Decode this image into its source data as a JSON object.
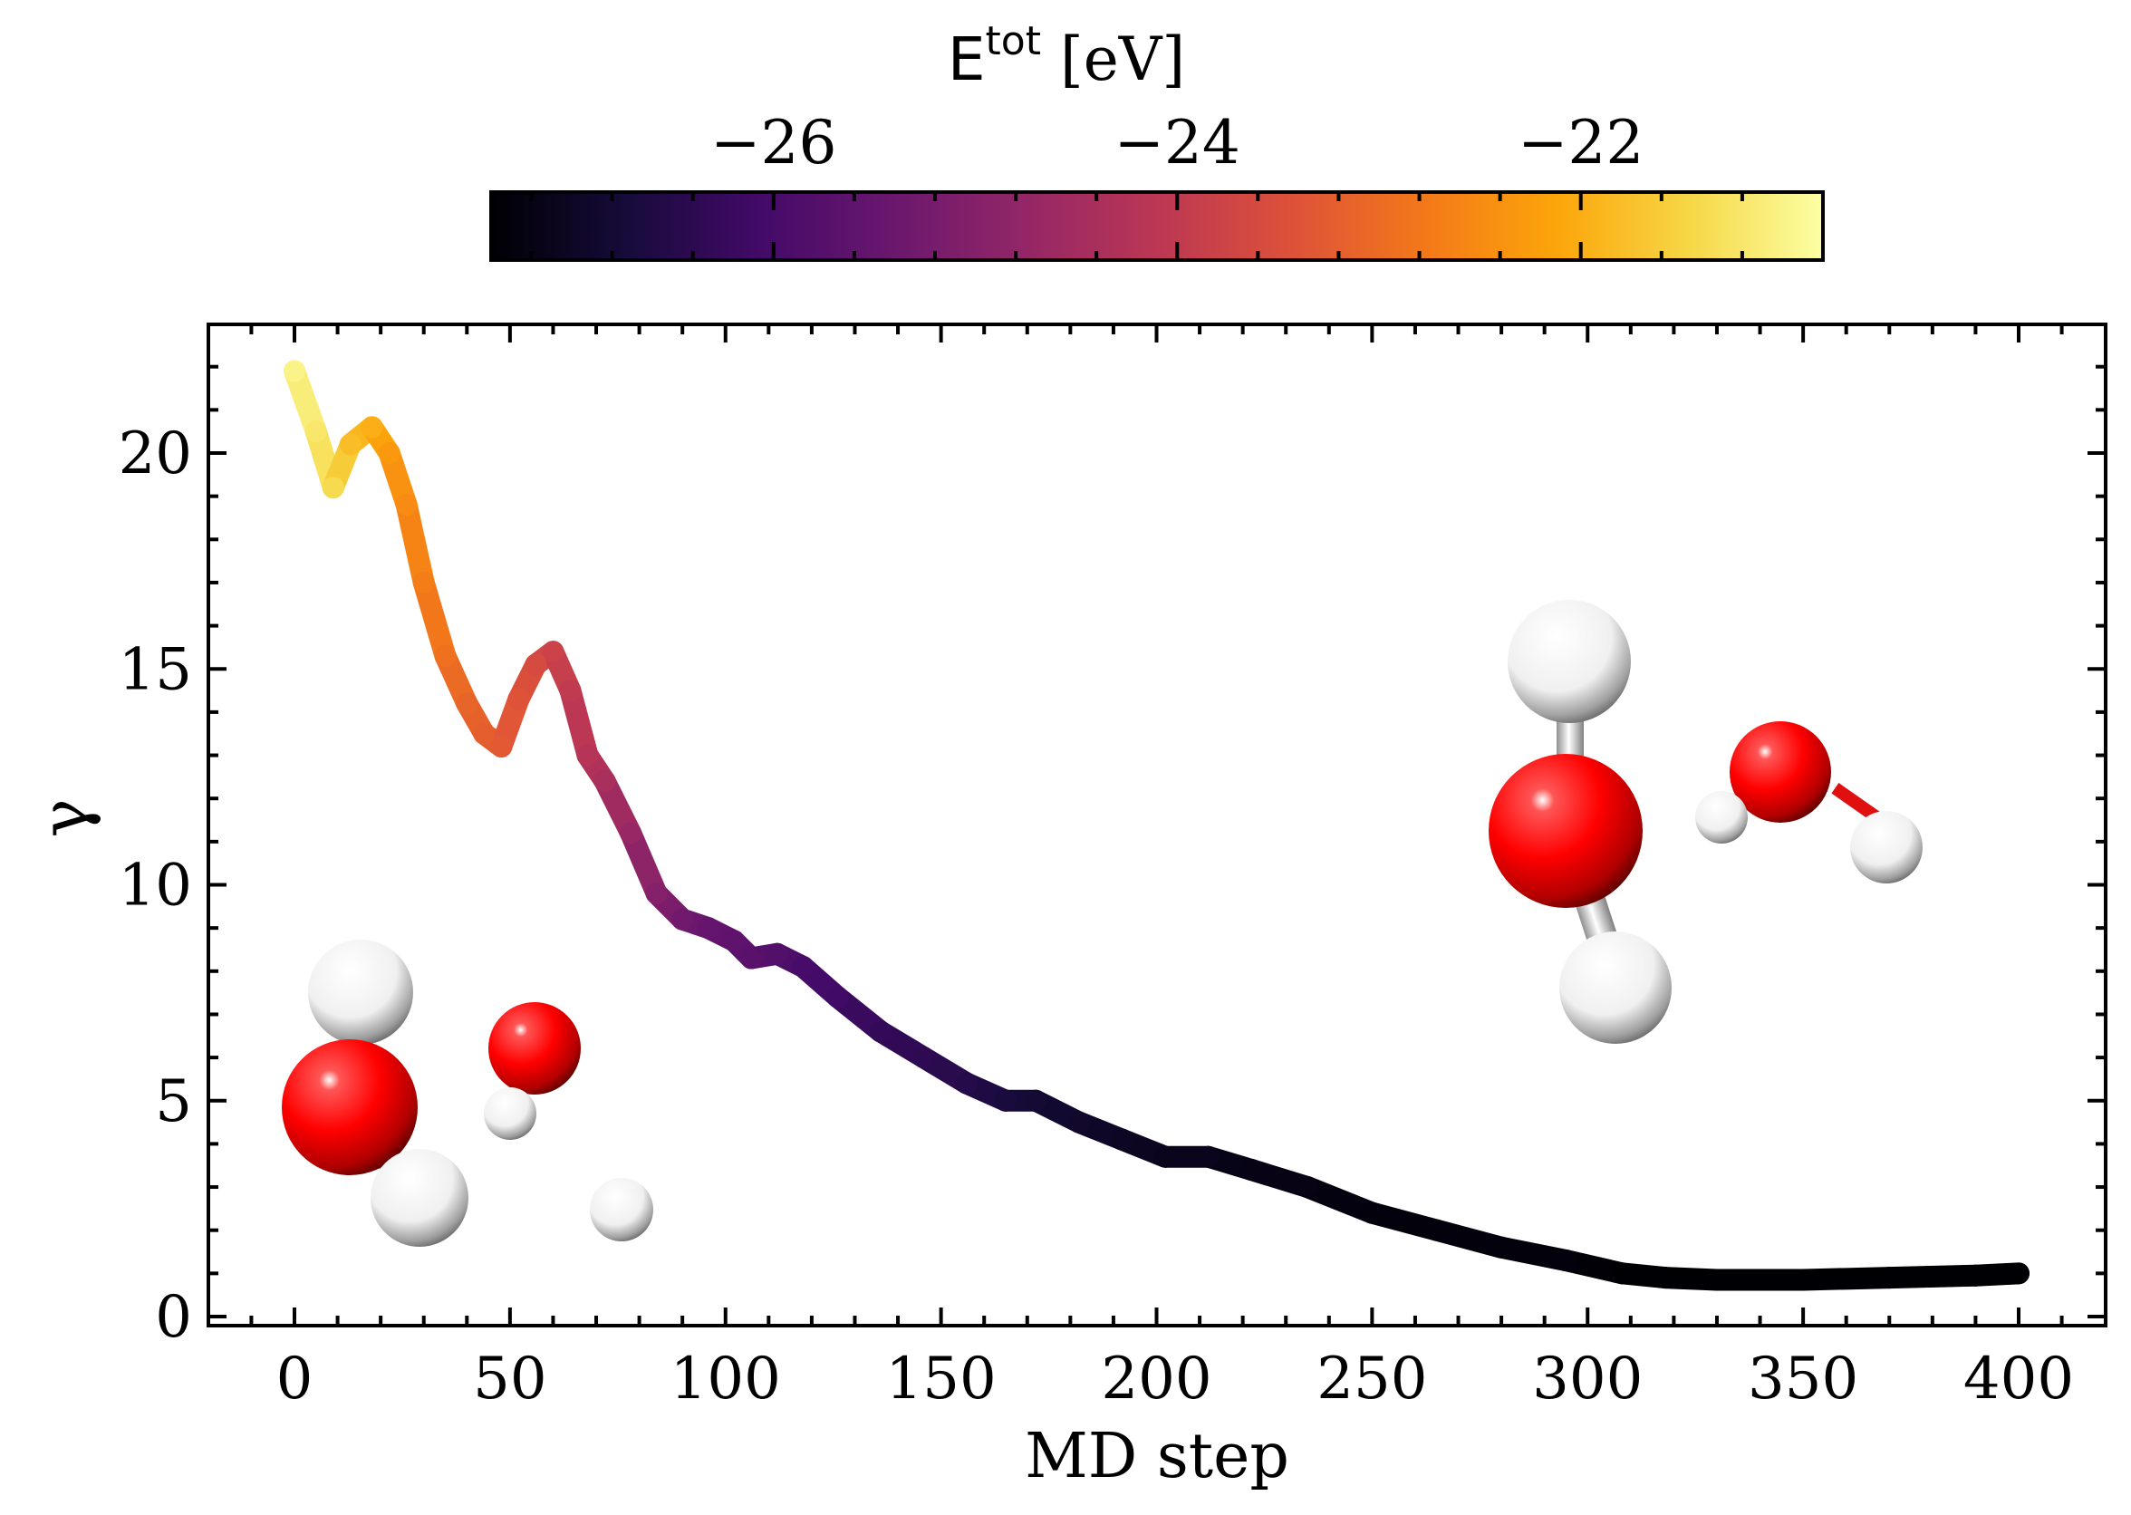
{
  "chart_data": {
    "type": "line",
    "title": "",
    "xlabel": "MD step",
    "ylabel": "γ",
    "xlim": [
      -20,
      420
    ],
    "ylim": [
      -0.3,
      23
    ],
    "xticks": [
      0,
      50,
      100,
      150,
      200,
      250,
      300,
      350,
      400
    ],
    "xtick_labels": [
      "0",
      "50",
      "100",
      "150",
      "200",
      "250",
      "300",
      "350",
      "400"
    ],
    "yticks": [
      0,
      5,
      10,
      15,
      20
    ],
    "ytick_labels": [
      "0",
      "5",
      "10",
      "15",
      "20"
    ],
    "grid": false,
    "colorbar": {
      "label_main": "E",
      "label_sup": "tot",
      "label_unit": " [eV]",
      "range": [
        -27.4,
        -20.8
      ],
      "ticks": [
        -26,
        -24,
        -22
      ],
      "tick_labels": [
        "−26",
        "−24",
        "−22"
      ],
      "colormap": "inferno",
      "orientation": "horizontal",
      "placement": "top"
    },
    "series": [
      {
        "name": "trajectory",
        "color_by": "E_tot",
        "points": [
          [
            0,
            21.9,
            -21.0
          ],
          [
            5,
            20.5,
            -21.2
          ],
          [
            9,
            19.2,
            -21.4
          ],
          [
            13,
            20.2,
            -21.8
          ],
          [
            18,
            20.6,
            -22.0
          ],
          [
            22,
            20.0,
            -22.3
          ],
          [
            26,
            18.8,
            -22.5
          ],
          [
            30,
            17.0,
            -22.7
          ],
          [
            35,
            15.3,
            -22.9
          ],
          [
            40,
            14.2,
            -23.1
          ],
          [
            44,
            13.5,
            -23.2
          ],
          [
            48,
            13.2,
            -23.3
          ],
          [
            52,
            14.3,
            -23.4
          ],
          [
            56,
            15.1,
            -23.6
          ],
          [
            60,
            15.4,
            -23.8
          ],
          [
            64,
            14.5,
            -24.0
          ],
          [
            68,
            13.0,
            -24.2
          ],
          [
            72,
            12.4,
            -24.4
          ],
          [
            78,
            11.2,
            -24.7
          ],
          [
            84,
            9.8,
            -25.0
          ],
          [
            90,
            9.2,
            -25.3
          ],
          [
            96,
            9.0,
            -25.5
          ],
          [
            102,
            8.7,
            -25.6
          ],
          [
            106,
            8.3,
            -25.7
          ],
          [
            112,
            8.4,
            -25.8
          ],
          [
            118,
            8.1,
            -26.0
          ],
          [
            126,
            7.4,
            -26.1
          ],
          [
            136,
            6.6,
            -26.3
          ],
          [
            146,
            6.0,
            -26.4
          ],
          [
            156,
            5.4,
            -26.5
          ],
          [
            165,
            5.0,
            -26.7
          ],
          [
            172,
            5.0,
            -26.8
          ],
          [
            182,
            4.5,
            -26.9
          ],
          [
            192,
            4.1,
            -27.0
          ],
          [
            202,
            3.7,
            -27.1
          ],
          [
            212,
            3.7,
            -27.1
          ],
          [
            222,
            3.4,
            -27.2
          ],
          [
            235,
            3.0,
            -27.2
          ],
          [
            250,
            2.4,
            -27.3
          ],
          [
            265,
            2.0,
            -27.3
          ],
          [
            280,
            1.6,
            -27.3
          ],
          [
            295,
            1.3,
            -27.3
          ],
          [
            308,
            1.0,
            -27.4
          ],
          [
            318,
            0.9,
            -27.4
          ],
          [
            330,
            0.85,
            -27.4
          ],
          [
            350,
            0.85,
            -27.4
          ],
          [
            370,
            0.9,
            -27.4
          ],
          [
            390,
            0.95,
            -27.4
          ],
          [
            400,
            1.0,
            -27.4
          ]
        ]
      }
    ],
    "annotations": [
      {
        "type": "molecule-image",
        "description": "water dimer near initial configuration",
        "position": "bottom-left"
      },
      {
        "type": "molecule-image",
        "description": "water dimer relaxed configuration",
        "position": "center-right"
      }
    ]
  }
}
